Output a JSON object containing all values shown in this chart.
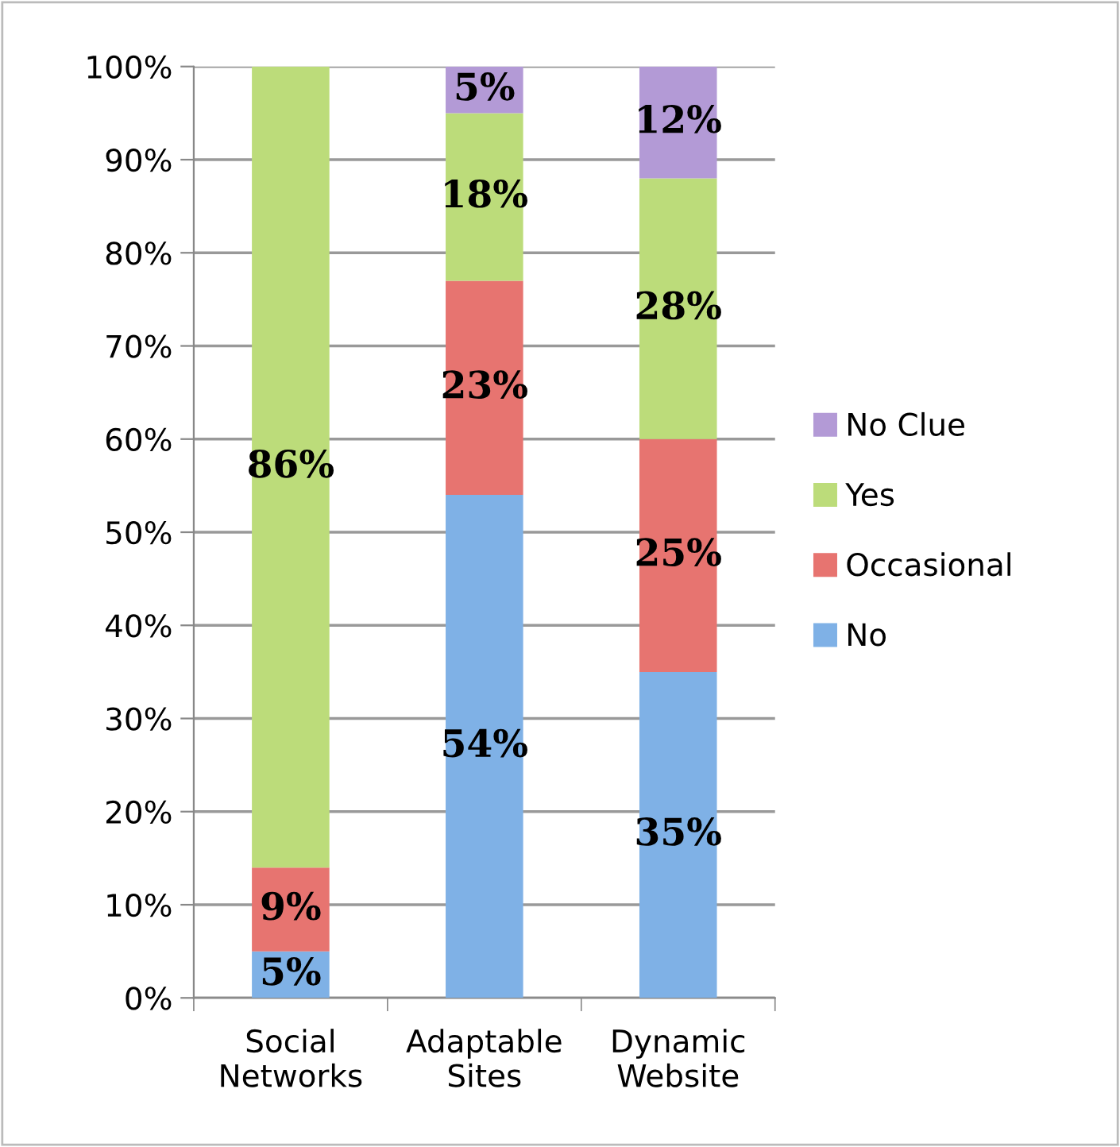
{
  "chart_data": {
    "type": "bar",
    "stacked": true,
    "categories": [
      "Social Networks",
      "Adaptable Sites",
      "Dynamic Website"
    ],
    "series": [
      {
        "name": "No",
        "color": "#7fb1e6",
        "values": [
          5,
          54,
          35
        ],
        "value_labels": [
          "5%",
          "54%",
          "35%"
        ]
      },
      {
        "name": "Occasional",
        "color": "#e77470",
        "values": [
          9,
          23,
          25
        ],
        "value_labels": [
          "9%",
          "23%",
          "25%"
        ]
      },
      {
        "name": "Yes",
        "color": "#bcdc7a",
        "values": [
          86,
          18,
          28
        ],
        "value_labels": [
          "86%",
          "18%",
          "28%"
        ]
      },
      {
        "name": "No Clue",
        "color": "#b39ad6",
        "values": [
          null,
          5,
          12
        ],
        "value_labels": [
          null,
          "5%",
          "12%"
        ]
      }
    ],
    "ylim": [
      0,
      100
    ],
    "yticks": [
      {
        "value": 0,
        "label": "0%"
      },
      {
        "value": 10,
        "label": "10%"
      },
      {
        "value": 20,
        "label": "20%"
      },
      {
        "value": 30,
        "label": "30%"
      },
      {
        "value": 40,
        "label": "40%"
      },
      {
        "value": 50,
        "label": "50%"
      },
      {
        "value": 60,
        "label": "60%"
      },
      {
        "value": 70,
        "label": "70%"
      },
      {
        "value": 80,
        "label": "80%"
      },
      {
        "value": 90,
        "label": "90%"
      },
      {
        "value": 100,
        "label": "100%"
      }
    ],
    "grid": "y",
    "legend": "right"
  }
}
